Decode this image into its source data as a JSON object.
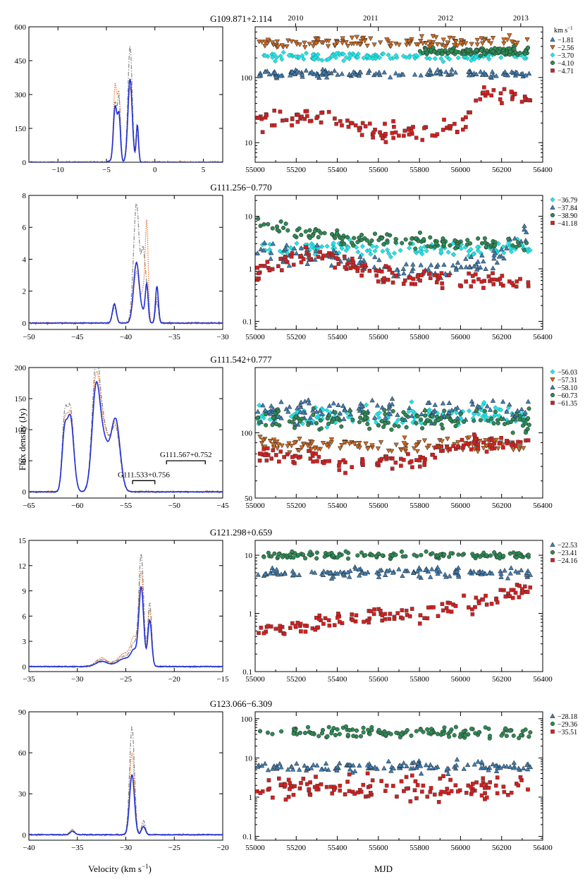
{
  "figure": {
    "ylabel": "Flux density (Jy)",
    "xlabel_left": "Velocity (km s",
    "xlabel_left_sup": "−1",
    "xlabel_left_close": ")",
    "xlabel_right": "MJD",
    "top_years": [
      "2010",
      "2011",
      "2012",
      "2013"
    ],
    "legend_unit": "km s",
    "legend_unit_sup": "−1"
  },
  "colors": {
    "blue_line": "#1f2fd6",
    "dashdot_line": "#8a8a8a",
    "dotted_line": "#e8702a",
    "tri_up": "#3f7fb5",
    "tri_down": "#d06a20",
    "diamond": "#22e3e6",
    "circle": "#2f8a55",
    "square": "#d41f1f"
  },
  "chart_data": [
    {
      "type": "line",
      "panel": "spectrum",
      "source": "G109.871+2.114",
      "xlim": [
        -13,
        7
      ],
      "ylim": [
        0,
        600
      ],
      "xticks": [
        -10,
        -5,
        0,
        5
      ],
      "yticks": [
        0,
        150,
        300,
        450,
        600
      ],
      "peaks": [
        {
          "v": -4.71,
          "blue": 5,
          "grey": 5,
          "orange": 5,
          "w": 0.15
        },
        {
          "v": -4.1,
          "blue": 245,
          "grey": 260,
          "orange": 340,
          "w": 0.18
        },
        {
          "v": -3.7,
          "blue": 200,
          "grey": 270,
          "orange": 285,
          "w": 0.15
        },
        {
          "v": -2.56,
          "blue": 370,
          "grey": 515,
          "orange": 330,
          "w": 0.22
        },
        {
          "v": -1.81,
          "blue": 165,
          "grey": 150,
          "orange": 120,
          "w": 0.12
        }
      ]
    },
    {
      "type": "scatter",
      "panel": "timeseries",
      "source": "G109.871+2.114",
      "xlim": [
        55000,
        56400
      ],
      "log": true,
      "ylim": [
        5,
        600
      ],
      "yticks": [
        10,
        100
      ],
      "legend_has_unit": true,
      "series": [
        {
          "name": "−1.81",
          "marker": "tri_up",
          "base": 115,
          "jitter": 0.05
        },
        {
          "name": "−2.56",
          "marker": "tri_down",
          "base": 350,
          "jitter": 0.07
        },
        {
          "name": "−3.70",
          "marker": "diamond",
          "base": 210,
          "jitter": 0.05
        },
        {
          "name": "−4.10",
          "marker": "circle",
          "base": 250,
          "jitter": 0.05,
          "start": 55800
        },
        {
          "name": "−4.71",
          "marker": "square",
          "base": 20,
          "jitter": 0.12,
          "knots": [
            [
              55000,
              22
            ],
            [
              55300,
              25
            ],
            [
              55600,
              14
            ],
            [
              56000,
              16
            ],
            [
              56100,
              60
            ],
            [
              56350,
              45
            ]
          ]
        }
      ]
    },
    {
      "type": "line",
      "panel": "spectrum",
      "source": "G111.256−0.770",
      "xlim": [
        -50,
        -30
      ],
      "ylim": [
        -0.4,
        8
      ],
      "xticks": [
        -50,
        -45,
        -40,
        -35,
        -30
      ],
      "yticks": [
        0,
        2,
        4,
        6,
        8
      ],
      "peaks": [
        {
          "v": -41.18,
          "blue": 1.2,
          "grey": 1.0,
          "orange": 1.1,
          "w": 0.2
        },
        {
          "v": -38.9,
          "blue": 3.8,
          "grey": 7.5,
          "orange": 3.2,
          "w": 0.3
        },
        {
          "v": -38.2,
          "blue": 0.5,
          "grey": 4.2,
          "orange": 1.8,
          "w": 0.2
        },
        {
          "v": -37.84,
          "blue": 2.4,
          "grey": 1.6,
          "orange": 6.1,
          "w": 0.15
        },
        {
          "v": -36.79,
          "blue": 2.3,
          "grey": 1.4,
          "orange": 1.6,
          "w": 0.15
        }
      ]
    },
    {
      "type": "scatter",
      "panel": "timeseries",
      "source": "G111.256−0.770",
      "xlim": [
        55000,
        56400
      ],
      "log": true,
      "ylim": [
        0.07,
        25
      ],
      "yticks": [
        0.1,
        1,
        10
      ],
      "series": [
        {
          "name": "−36.79",
          "marker": "diamond",
          "base": 2.5,
          "jitter": 0.12
        },
        {
          "name": "−37.84",
          "marker": "tri_up",
          "base": 1.5,
          "jitter": 0.18,
          "knots": [
            [
              55000,
              2.2
            ],
            [
              55400,
              1.6
            ],
            [
              55700,
              0.9
            ],
            [
              56100,
              1.1
            ],
            [
              56350,
              6
            ]
          ]
        },
        {
          "name": "−38.90",
          "marker": "circle",
          "base": 3.5,
          "jitter": 0.12,
          "knots": [
            [
              55000,
              7
            ],
            [
              55400,
              4
            ],
            [
              56000,
              3
            ],
            [
              56350,
              3
            ]
          ]
        },
        {
          "name": "−41.18",
          "marker": "square",
          "base": 0.9,
          "jitter": 0.15,
          "knots": [
            [
              55000,
              0.9
            ],
            [
              55300,
              2
            ],
            [
              55600,
              0.8
            ],
            [
              56100,
              0.6
            ],
            [
              56350,
              0.5
            ]
          ]
        }
      ]
    },
    {
      "type": "line",
      "panel": "spectrum",
      "source": "G111.542+0.777",
      "xlim": [
        -65,
        -45
      ],
      "ylim": [
        -10,
        200
      ],
      "xticks": [
        -65,
        -60,
        -55,
        -50,
        -45
      ],
      "yticks": [
        0,
        50,
        100,
        150,
        200
      ],
      "annotations": [
        {
          "text": "G111.533+0.756",
          "x1": -54.3,
          "x2": -52.0,
          "y": 18
        },
        {
          "text": "G111.567+0.752",
          "x1": -50.8,
          "x2": -46.8,
          "y": 50
        }
      ],
      "peaks": [
        {
          "v": -61.35,
          "blue": 80,
          "grey": 100,
          "orange": 90,
          "w": 0.25
        },
        {
          "v": -60.73,
          "blue": 120,
          "grey": 135,
          "orange": 125,
          "w": 0.35
        },
        {
          "v": -58.1,
          "blue": 140,
          "grey": 170,
          "orange": 150,
          "w": 0.4
        },
        {
          "v": -57.31,
          "blue": 80,
          "grey": 100,
          "orange": 95,
          "w": 0.6
        },
        {
          "v": -56.03,
          "blue": 110,
          "grey": 95,
          "orange": 100,
          "w": 0.45
        }
      ]
    },
    {
      "type": "scatter",
      "panel": "timeseries",
      "source": "G111.542+0.777",
      "xlim": [
        55000,
        56400
      ],
      "log": true,
      "ylim": [
        50,
        200
      ],
      "yticks": [
        50,
        100
      ],
      "series": [
        {
          "name": "−56.03",
          "marker": "diamond",
          "base": 120,
          "jitter": 0.04
        },
        {
          "name": "−57.31",
          "marker": "tri_down",
          "base": 88,
          "jitter": 0.03
        },
        {
          "name": "−58.10",
          "marker": "tri_up",
          "base": 125,
          "jitter": 0.05
        },
        {
          "name": "−60.73",
          "marker": "circle",
          "base": 115,
          "jitter": 0.04
        },
        {
          "name": "−61.35",
          "marker": "square",
          "base": 75,
          "jitter": 0.03,
          "knots": [
            [
              55000,
              80
            ],
            [
              55400,
              73
            ],
            [
              55800,
              74
            ],
            [
              56000,
              88
            ],
            [
              56350,
              92
            ]
          ]
        }
      ]
    },
    {
      "type": "line",
      "panel": "spectrum",
      "source": "G121.298+0.659",
      "xlim": [
        -35,
        -15
      ],
      "ylim": [
        -0.6,
        15
      ],
      "xticks": [
        -35,
        -30,
        -25,
        -20,
        -15
      ],
      "yticks": [
        0,
        3,
        6,
        9,
        12,
        15
      ],
      "peaks": [
        {
          "v": -27.5,
          "blue": 0.6,
          "grey": 0.8,
          "orange": 1.0,
          "w": 0.6
        },
        {
          "v": -25.0,
          "blue": 1.0,
          "grey": 1.3,
          "orange": 1.6,
          "w": 0.8
        },
        {
          "v": -24.16,
          "blue": 1.4,
          "grey": 2.0,
          "orange": 2.6,
          "w": 0.3
        },
        {
          "v": -23.41,
          "blue": 9.3,
          "grey": 13.2,
          "orange": 11.0,
          "w": 0.25
        },
        {
          "v": -22.53,
          "blue": 5.5,
          "grey": 7.5,
          "orange": 6.8,
          "w": 0.2
        }
      ]
    },
    {
      "type": "scatter",
      "panel": "timeseries",
      "source": "G121.298+0.659",
      "xlim": [
        55000,
        56400
      ],
      "log": true,
      "ylim": [
        0.1,
        18
      ],
      "yticks": [
        0.1,
        1,
        10
      ],
      "series": [
        {
          "name": "−22.53",
          "marker": "tri_up",
          "base": 5,
          "jitter": 0.07
        },
        {
          "name": "−23.41",
          "marker": "circle",
          "base": 10,
          "jitter": 0.05
        },
        {
          "name": "−24.16",
          "marker": "square",
          "base": 1,
          "jitter": 0.13,
          "knots": [
            [
              55000,
              0.5
            ],
            [
              55400,
              0.8
            ],
            [
              55800,
              1.0
            ],
            [
              56100,
              1.6
            ],
            [
              56350,
              3
            ]
          ]
        }
      ]
    },
    {
      "type": "line",
      "panel": "spectrum",
      "source": "G123.066−6.309",
      "xlim": [
        -40,
        -20
      ],
      "ylim": [
        -4,
        90
      ],
      "xticks": [
        -40,
        -35,
        -30,
        -25,
        -20
      ],
      "yticks": [
        0,
        30,
        60,
        90
      ],
      "peaks": [
        {
          "v": -35.51,
          "blue": 2.5,
          "grey": 3.5,
          "orange": 4.0,
          "w": 0.25
        },
        {
          "v": -29.36,
          "blue": 44,
          "grey": 79,
          "orange": 60,
          "w": 0.25
        },
        {
          "v": -28.18,
          "blue": 6,
          "grey": 10,
          "orange": 8,
          "w": 0.2
        }
      ]
    },
    {
      "type": "scatter",
      "panel": "timeseries",
      "source": "G123.066−6.309",
      "xlim": [
        55000,
        56400
      ],
      "log": true,
      "ylim": [
        0.08,
        150
      ],
      "yticks": [
        0.1,
        1,
        10,
        100
      ],
      "series": [
        {
          "name": "−28.18",
          "marker": "tri_up",
          "base": 6,
          "jitter": 0.12
        },
        {
          "name": "−29.36",
          "marker": "circle",
          "base": 45,
          "jitter": 0.12
        },
        {
          "name": "−35.51",
          "marker": "square",
          "base": 1.8,
          "jitter": 0.28
        }
      ]
    }
  ]
}
